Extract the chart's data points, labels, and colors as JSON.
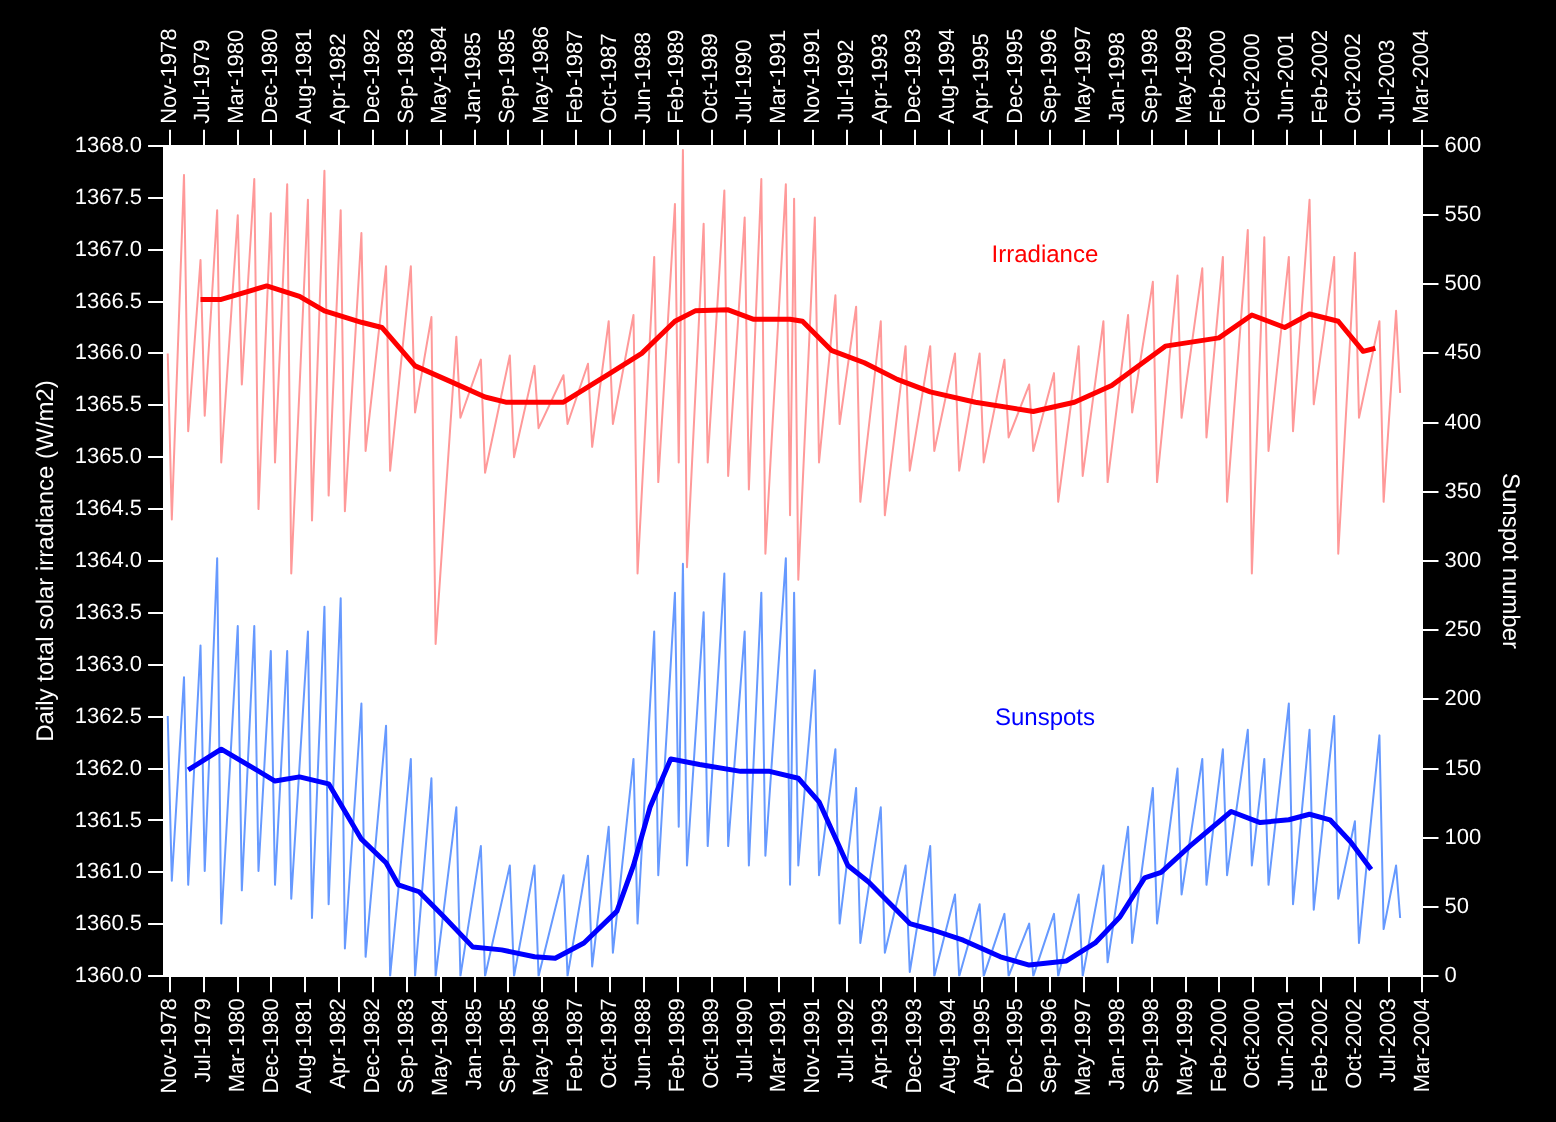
{
  "chart_data": {
    "type": "line",
    "ylabel": "Daily total solar irradiance (W/m2)",
    "y2label": "Sunspot number",
    "marker": "none",
    "xlim": [
      "1978-10-05",
      "2004-03-14"
    ],
    "x2lim": [
      "1978-10-05",
      "2004-03-14"
    ],
    "xticks": [
      {
        "value": "1978-11-17",
        "label": "Nov-1978"
      },
      {
        "value": "1979-07-25",
        "label": "Jul-1979"
      },
      {
        "value": "1980-03-31",
        "label": "Mar-1980"
      },
      {
        "value": "1980-12-06",
        "label": "Dec-1980"
      },
      {
        "value": "1981-08-13",
        "label": "Aug-1981"
      },
      {
        "value": "1982-04-20",
        "label": "Apr-1982"
      },
      {
        "value": "1982-12-26",
        "label": "Dec-1982"
      },
      {
        "value": "1983-09-02",
        "label": "Sep-1983"
      },
      {
        "value": "1984-05-09",
        "label": "May-1984"
      },
      {
        "value": "1985-01-14",
        "label": "Jan-1985"
      },
      {
        "value": "1985-09-21",
        "label": "Sep-1985"
      },
      {
        "value": "1986-05-29",
        "label": "May-1986"
      },
      {
        "value": "1987-02-03",
        "label": "Feb-1987"
      },
      {
        "value": "1987-10-11",
        "label": "Oct-1987"
      },
      {
        "value": "1988-06-17",
        "label": "Jun-1988"
      },
      {
        "value": "1989-02-22",
        "label": "Feb-1989"
      },
      {
        "value": "1989-10-30",
        "label": "Oct-1989"
      },
      {
        "value": "1990-07-07",
        "label": "Jul-1990"
      },
      {
        "value": "1991-03-14",
        "label": "Mar-1991"
      },
      {
        "value": "1991-11-19",
        "label": "Nov-1991"
      },
      {
        "value": "1992-07-26",
        "label": "Jul-1992"
      },
      {
        "value": "1993-04-02",
        "label": "Apr-1993"
      },
      {
        "value": "1993-12-08",
        "label": "Dec-1993"
      },
      {
        "value": "1994-08-15",
        "label": "Aug-1994"
      },
      {
        "value": "1995-04-22",
        "label": "Apr-1995"
      },
      {
        "value": "1995-12-28",
        "label": "Dec-1995"
      },
      {
        "value": "1996-09-03",
        "label": "Sep-1996"
      },
      {
        "value": "1997-05-11",
        "label": "May-1997"
      },
      {
        "value": "1998-01-16",
        "label": "Jan-1998"
      },
      {
        "value": "1998-09-23",
        "label": "Sep-1998"
      },
      {
        "value": "1999-05-31",
        "label": "May-1999"
      },
      {
        "value": "2000-02-05",
        "label": "Feb-2000"
      },
      {
        "value": "2000-10-12",
        "label": "Oct-2000"
      },
      {
        "value": "2001-06-19",
        "label": "Jun-2001"
      },
      {
        "value": "2002-02-24",
        "label": "Feb-2002"
      },
      {
        "value": "2002-10-31",
        "label": "Oct-2002"
      },
      {
        "value": "2003-07-08",
        "label": "Jul-2003"
      },
      {
        "value": "2004-03-14",
        "label": "Mar-2004"
      }
    ],
    "x2ticks": [
      {
        "value": "1978-11-17",
        "label": "Nov-1978"
      },
      {
        "value": "1979-07-25",
        "label": "Jul-1979"
      },
      {
        "value": "1980-03-31",
        "label": "Mar-1980"
      },
      {
        "value": "1980-12-06",
        "label": "Dec-1980"
      },
      {
        "value": "1981-08-13",
        "label": "Aug-1981"
      },
      {
        "value": "1982-04-20",
        "label": "Apr-1982"
      },
      {
        "value": "1982-12-26",
        "label": "Dec-1982"
      },
      {
        "value": "1983-09-02",
        "label": "Sep-1983"
      },
      {
        "value": "1984-05-09",
        "label": "May-1984"
      },
      {
        "value": "1985-01-14",
        "label": "Jan-1985"
      },
      {
        "value": "1985-09-21",
        "label": "Sep-1985"
      },
      {
        "value": "1986-05-29",
        "label": "May-1986"
      },
      {
        "value": "1987-02-03",
        "label": "Feb-1987"
      },
      {
        "value": "1987-10-11",
        "label": "Oct-1987"
      },
      {
        "value": "1988-06-17",
        "label": "Jun-1988"
      },
      {
        "value": "1989-02-22",
        "label": "Feb-1989"
      },
      {
        "value": "1989-10-30",
        "label": "Oct-1989"
      },
      {
        "value": "1990-07-07",
        "label": "Jul-1990"
      },
      {
        "value": "1991-03-14",
        "label": "Mar-1991"
      },
      {
        "value": "1991-11-19",
        "label": "Nov-1991"
      },
      {
        "value": "1992-07-26",
        "label": "Jul-1992"
      },
      {
        "value": "1993-04-02",
        "label": "Apr-1993"
      },
      {
        "value": "1993-12-08",
        "label": "Dec-1993"
      },
      {
        "value": "1994-08-15",
        "label": "Aug-1994"
      },
      {
        "value": "1995-04-22",
        "label": "Apr-1995"
      },
      {
        "value": "1995-12-28",
        "label": "Dec-1995"
      },
      {
        "value": "1996-09-03",
        "label": "Sep-1996"
      },
      {
        "value": "1997-05-11",
        "label": "May-1997"
      },
      {
        "value": "1998-01-16",
        "label": "Jan-1998"
      },
      {
        "value": "1998-09-23",
        "label": "Sep-1998"
      },
      {
        "value": "1999-05-31",
        "label": "May-1999"
      },
      {
        "value": "2000-02-05",
        "label": "Feb-2000"
      },
      {
        "value": "2000-10-12",
        "label": "Oct-2000"
      },
      {
        "value": "2001-06-19",
        "label": "Jun-2001"
      },
      {
        "value": "2002-02-24",
        "label": "Feb-2002"
      },
      {
        "value": "2002-10-31",
        "label": "Oct-2002"
      },
      {
        "value": "2003-07-08",
        "label": "Jul-2003"
      },
      {
        "value": "2004-03-14",
        "label": "Mar-2004"
      }
    ],
    "ylim": [
      1360,
      1368
    ],
    "yticks": [
      {
        "value": 1360,
        "label": "1360.0"
      },
      {
        "value": 1360.5,
        "label": "1360.5"
      },
      {
        "value": 1361,
        "label": "1361.0"
      },
      {
        "value": 1361.5,
        "label": "1361.5"
      },
      {
        "value": 1362,
        "label": "1362.0"
      },
      {
        "value": 1362.5,
        "label": "1362.5"
      },
      {
        "value": 1363,
        "label": "1363.0"
      },
      {
        "value": 1363.5,
        "label": "1363.5"
      },
      {
        "value": 1364,
        "label": "1364.0"
      },
      {
        "value": 1364.5,
        "label": "1364.5"
      },
      {
        "value": 1365,
        "label": "1365.0"
      },
      {
        "value": 1365.5,
        "label": "1365.5"
      },
      {
        "value": 1366,
        "label": "1366.0"
      },
      {
        "value": 1366.5,
        "label": "1366.5"
      },
      {
        "value": 1367,
        "label": "1367.0"
      },
      {
        "value": 1367.5,
        "label": "1367.5"
      },
      {
        "value": 1368,
        "label": "1368.0"
      }
    ],
    "y2lim": [
      0,
      600
    ],
    "y2ticks": [
      0,
      50,
      100,
      150,
      200,
      250,
      300,
      350,
      400,
      450,
      500,
      550,
      600
    ],
    "series": [
      {
        "color": "#ff9999",
        "x": [
          "1978-11",
          "1978-12",
          "1979-03",
          "1979-04",
          "1979-07",
          "1979-08",
          "1979-11",
          "1979-12",
          "1980-04",
          "1980-05",
          "1980-08",
          "1980-09",
          "1980-12",
          "1981-01",
          "1981-04",
          "1981-05",
          "1981-09",
          "1981-10",
          "1982-01",
          "1982-02",
          "1982-05",
          "1982-06",
          "1982-10",
          "1982-11",
          "1983-04",
          "1983-05",
          "1983-10",
          "1983-11",
          "1984-03",
          "1984-04",
          "1984-09",
          "1984-10",
          "1985-03",
          "1985-04",
          "1985-10",
          "1985-11",
          "1986-04",
          "1986-05",
          "1986-11",
          "1986-12",
          "1987-05",
          "1987-06",
          "1987-10",
          "1987-11",
          "1988-04",
          "1988-05",
          "1988-09",
          "1988-10",
          "1989-02",
          "1989-03",
          "1989-04",
          "1989-05",
          "1989-09",
          "1989-10",
          "1990-02",
          "1990-03",
          "1990-07",
          "1990-08",
          "1990-11",
          "1990-12",
          "1991-05",
          "1991-06",
          "1991-07",
          "1991-08",
          "1991-12",
          "1992-01",
          "1992-05",
          "1992-06",
          "1992-10",
          "1992-11",
          "1993-04",
          "1993-05",
          "1993-10",
          "1993-11",
          "1994-04",
          "1994-05",
          "1994-10",
          "1994-11",
          "1995-04",
          "1995-05",
          "1995-10",
          "1995-11",
          "1996-04",
          "1996-05",
          "1996-10",
          "1996-11",
          "1997-04",
          "1997-05",
          "1997-10",
          "1997-11",
          "1998-04",
          "1998-05",
          "1998-10",
          "1998-11",
          "1999-04",
          "1999-05",
          "1999-10",
          "1999-11",
          "2000-03",
          "2000-04",
          "2000-09",
          "2000-10",
          "2001-01",
          "2001-02",
          "2001-07",
          "2001-08",
          "2001-12",
          "2002-01",
          "2002-06",
          "2002-07",
          "2002-11",
          "2002-12",
          "2003-05",
          "2003-06",
          "2003-09",
          "2003-10"
        ],
        "values": [
          1366.0,
          1364.4,
          1367.72,
          1365.25,
          1366.9,
          1365.4,
          1367.38,
          1364.95,
          1367.33,
          1365.7,
          1367.68,
          1364.5,
          1367.35,
          1364.95,
          1367.63,
          1363.88,
          1367.48,
          1364.39,
          1367.76,
          1364.63,
          1367.38,
          1364.48,
          1367.16,
          1365.06,
          1366.84,
          1364.87,
          1366.84,
          1365.43,
          1366.35,
          1363.2,
          1366.16,
          1365.38,
          1365.94,
          1364.85,
          1365.98,
          1365.0,
          1365.88,
          1365.28,
          1365.79,
          1365.32,
          1365.9,
          1365.1,
          1366.31,
          1365.32,
          1366.37,
          1363.88,
          1366.93,
          1364.76,
          1367.44,
          1364.95,
          1367.96,
          1363.94,
          1367.25,
          1364.95,
          1367.57,
          1364.82,
          1367.31,
          1364.69,
          1367.68,
          1364.07,
          1367.63,
          1364.44,
          1367.49,
          1363.82,
          1367.31,
          1364.95,
          1366.56,
          1365.32,
          1366.45,
          1364.57,
          1366.31,
          1364.44,
          1366.07,
          1364.87,
          1366.07,
          1365.06,
          1366.0,
          1364.87,
          1366.0,
          1364.95,
          1365.94,
          1365.19,
          1365.7,
          1365.06,
          1365.81,
          1364.57,
          1366.07,
          1364.82,
          1366.31,
          1364.76,
          1366.37,
          1365.43,
          1366.69,
          1364.76,
          1366.75,
          1365.38,
          1366.82,
          1365.19,
          1366.93,
          1364.57,
          1367.19,
          1363.88,
          1367.12,
          1365.06,
          1366.93,
          1365.25,
          1367.48,
          1365.51,
          1366.93,
          1364.07,
          1366.97,
          1365.38,
          1366.31,
          1364.57,
          1366.41,
          1365.62
        ]
      },
      {
        "name": "Irradiance",
        "color": "#ff0000",
        "x": [
          "1979-07",
          "1979-12",
          "1980-11",
          "1981-07",
          "1982-01",
          "1982-10",
          "1983-03",
          "1983-11",
          "1984-07",
          "1985-04",
          "1985-09",
          "1986-11",
          "1987-10",
          "1988-06",
          "1989-02",
          "1989-07",
          "1990-03",
          "1990-09",
          "1991-06",
          "1991-09",
          "1992-04",
          "1992-12",
          "1993-08",
          "1994-04",
          "1995-03",
          "1996-05",
          "1997-03",
          "1997-12",
          "1999-01",
          "2000-02",
          "2000-10",
          "2001-06",
          "2001-12",
          "2002-07",
          "2003-01",
          "2003-04"
        ],
        "values": [
          1366.52,
          1366.52,
          1366.65,
          1366.55,
          1366.41,
          1366.3,
          1366.25,
          1365.88,
          1365.74,
          1365.58,
          1365.53,
          1365.53,
          1365.8,
          1366.0,
          1366.31,
          1366.41,
          1366.42,
          1366.33,
          1366.33,
          1366.31,
          1366.03,
          1365.91,
          1365.75,
          1365.63,
          1365.53,
          1365.44,
          1365.53,
          1365.69,
          1366.07,
          1366.15,
          1366.37,
          1366.25,
          1366.38,
          1366.31,
          1366.02,
          1366.05
        ]
      },
      {
        "color": "#6699ff",
        "axis": "y2",
        "x": [
          "1978-11",
          "1978-12",
          "1979-03",
          "1979-04",
          "1979-07",
          "1979-08",
          "1979-11",
          "1979-12",
          "1980-04",
          "1980-05",
          "1980-08",
          "1980-09",
          "1980-12",
          "1981-01",
          "1981-04",
          "1981-05",
          "1981-09",
          "1981-10",
          "1982-01",
          "1982-02",
          "1982-05",
          "1982-06",
          "1982-10",
          "1982-11",
          "1983-04",
          "1983-05",
          "1983-10",
          "1983-11",
          "1984-03",
          "1984-04",
          "1984-09",
          "1984-10",
          "1985-03",
          "1985-04",
          "1985-10",
          "1985-11",
          "1986-04",
          "1986-05",
          "1986-11",
          "1986-12",
          "1987-05",
          "1987-06",
          "1987-10",
          "1987-11",
          "1988-04",
          "1988-05",
          "1988-09",
          "1988-10",
          "1989-02",
          "1989-03",
          "1989-04",
          "1989-05",
          "1989-09",
          "1989-10",
          "1990-02",
          "1990-03",
          "1990-07",
          "1990-08",
          "1990-11",
          "1990-12",
          "1991-05",
          "1991-06",
          "1991-07",
          "1991-08",
          "1991-12",
          "1992-01",
          "1992-05",
          "1992-06",
          "1992-10",
          "1992-11",
          "1993-04",
          "1993-05",
          "1993-10",
          "1993-11",
          "1994-04",
          "1994-05",
          "1994-10",
          "1994-11",
          "1995-04",
          "1995-05",
          "1995-10",
          "1995-11",
          "1996-04",
          "1996-05",
          "1996-10",
          "1996-11",
          "1997-04",
          "1997-05",
          "1997-10",
          "1997-11",
          "1998-04",
          "1998-05",
          "1998-10",
          "1998-11",
          "1999-04",
          "1999-05",
          "1999-10",
          "1999-11",
          "2000-03",
          "2000-04",
          "2000-09",
          "2000-10",
          "2001-01",
          "2001-02",
          "2001-07",
          "2001-08",
          "2001-12",
          "2002-01",
          "2002-06",
          "2002-07",
          "2002-11",
          "2002-12",
          "2003-05",
          "2003-06",
          "2003-09",
          "2003-10"
        ],
        "values": [
          188,
          69,
          216,
          66,
          239,
          76,
          302,
          38,
          253,
          62,
          253,
          76,
          235,
          66,
          235,
          56,
          249,
          42,
          267,
          52,
          273,
          20,
          197,
          14,
          181,
          0,
          157,
          0,
          143,
          0,
          122,
          0,
          94,
          0,
          80,
          0,
          80,
          0,
          73,
          0,
          87,
          7,
          108,
          17,
          157,
          38,
          249,
          73,
          277,
          108,
          298,
          80,
          263,
          94,
          291,
          94,
          249,
          80,
          277,
          87,
          302,
          66,
          277,
          80,
          221,
          73,
          164,
          38,
          136,
          24,
          122,
          17,
          80,
          3,
          94,
          0,
          59,
          0,
          52,
          0,
          45,
          0,
          38,
          0,
          45,
          0,
          59,
          0,
          80,
          10,
          108,
          24,
          136,
          38,
          150,
          59,
          157,
          66,
          164,
          73,
          178,
          80,
          157,
          66,
          197,
          52,
          178,
          48,
          188,
          56,
          112,
          24,
          174,
          34,
          80,
          42
        ]
      },
      {
        "name": "Sunspots",
        "color": "#0000ff",
        "axis": "y2",
        "x": [
          "1979-04",
          "1979-12",
          "1980-08",
          "1981-01",
          "1981-07",
          "1982-02",
          "1982-10",
          "1983-04",
          "1983-07",
          "1983-12",
          "1984-06",
          "1985-01",
          "1985-08",
          "1986-04",
          "1986-09",
          "1987-04",
          "1987-12",
          "1988-04",
          "1988-08",
          "1989-01",
          "1989-08",
          "1990-06",
          "1991-01",
          "1991-08",
          "1992-01",
          "1992-08",
          "1993-01",
          "1993-11",
          "1994-05",
          "1994-12",
          "1995-09",
          "1996-04",
          "1997-01",
          "1997-08",
          "1998-02",
          "1998-08",
          "1998-12",
          "1999-07",
          "2000-05",
          "2000-12",
          "2001-07",
          "2001-12",
          "2002-05",
          "2002-10",
          "2003-03"
        ],
        "values": [
          149,
          164,
          150,
          141,
          144,
          139,
          99,
          82,
          66,
          61,
          43,
          21,
          19,
          14,
          13,
          24,
          47,
          80,
          122,
          157,
          153,
          148,
          148,
          143,
          126,
          80,
          68,
          38,
          33,
          26,
          14,
          8,
          11,
          24,
          43,
          71,
          75,
          94,
          119,
          111,
          113,
          117,
          113,
          97,
          77
        ]
      }
    ]
  }
}
